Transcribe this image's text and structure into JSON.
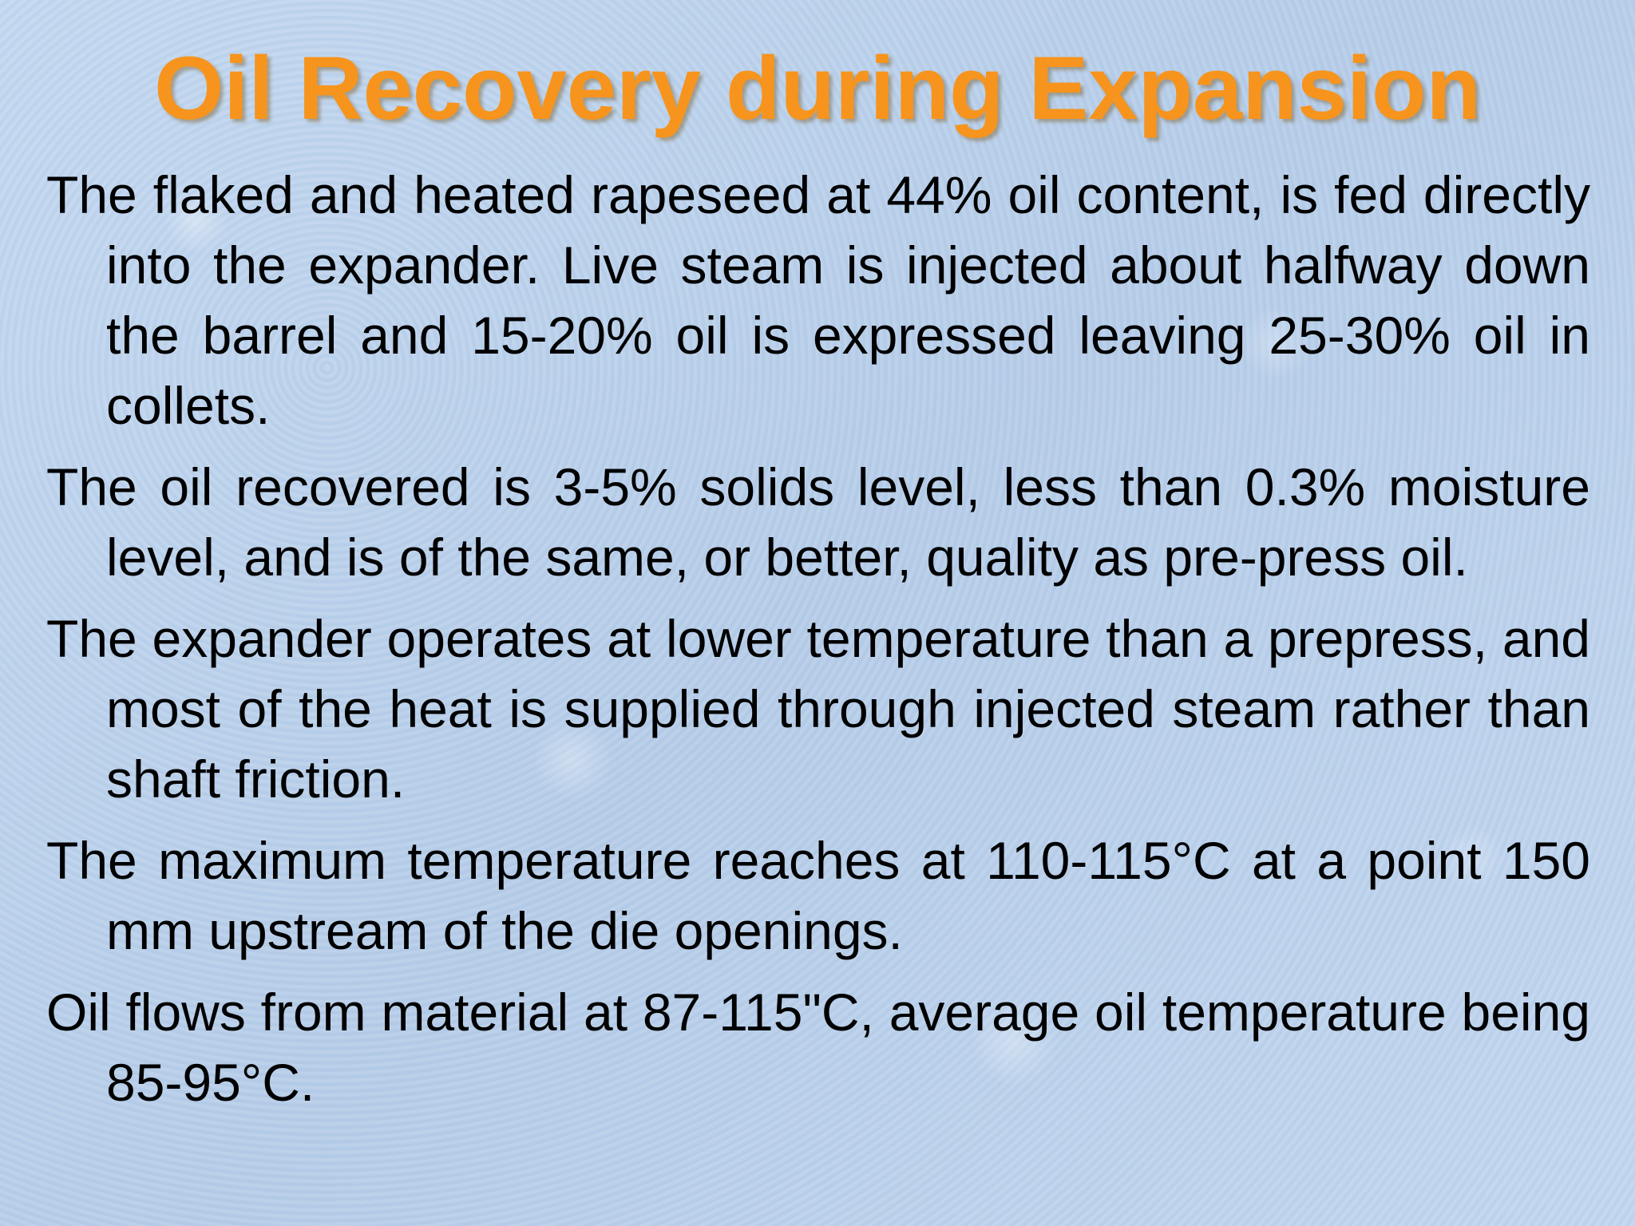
{
  "slide": {
    "title": "Oil Recovery during Expansion",
    "bullets": [
      "The flaked and heated rapeseed at 44% oil content, is fed directly into the expander. Live steam is injected about halfway down the barrel and 15-20% oil is expressed leaving 25-30% oil in collets.",
      "The oil recovered is 3-5% solids level, less than 0.3% moisture level, and is of the same, or better, quality as pre-press oil.",
      "The expander operates at lower temperature than a prepress, and most of the heat is supplied through injected steam rather than shaft friction.",
      "The maximum temperature reaches at 110-115°C at a point 150 mm upstream of the die openings.",
      "Oil flows from material at 87-115\"C, average oil temperature being 85-95°C."
    ]
  },
  "colors": {
    "title": "#f7941d",
    "text": "#000000",
    "background": "#b9d0ea"
  }
}
